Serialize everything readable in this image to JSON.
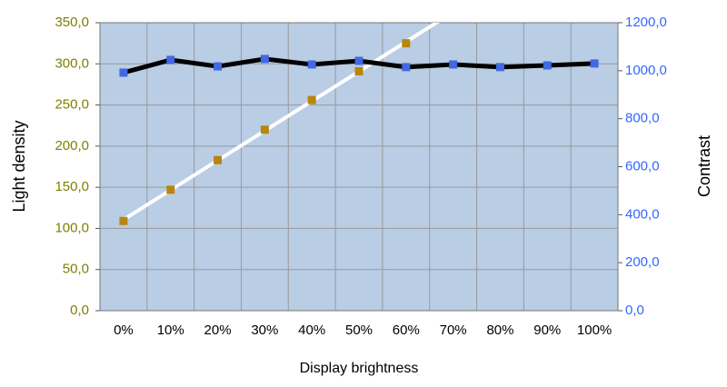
{
  "chart_data": {
    "type": "line",
    "categories": [
      "0%",
      "10%",
      "20%",
      "30%",
      "40%",
      "50%",
      "60%",
      "70%",
      "80%",
      "90%",
      "100%"
    ],
    "x_label": "Display brightness",
    "y_label": "Light density",
    "y2_label": "Contrast",
    "series": [
      {
        "name": "Light density",
        "color": "#b8860b",
        "line_color": "#ffffff",
        "trendline": true,
        "values": [
          109,
          147,
          183,
          220,
          256,
          291,
          325,
          null,
          null,
          null,
          null
        ]
      },
      {
        "name": "Contrast",
        "color": "#4169e1",
        "line_color": "#000000",
        "axis": "y2",
        "values": [
          992,
          1045,
          1018,
          1049,
          1026,
          1041,
          1015,
          1026,
          1015,
          1022,
          1030
        ]
      }
    ],
    "ylim": [
      0,
      350
    ],
    "yticks": [
      {
        "value": 0,
        "label": "0,0"
      },
      {
        "value": 50,
        "label": "50,0"
      },
      {
        "value": 100,
        "label": "100,0"
      },
      {
        "value": 150,
        "label": "150,0"
      },
      {
        "value": 200,
        "label": "200,0"
      },
      {
        "value": 250,
        "label": "250,0"
      },
      {
        "value": 300,
        "label": "300,0"
      },
      {
        "value": 350,
        "label": "350,0"
      }
    ],
    "y2lim": [
      0,
      1200
    ],
    "y2ticks": [
      {
        "value": 0,
        "label": "0,0"
      },
      {
        "value": 200,
        "label": "200,0"
      },
      {
        "value": 400,
        "label": "400,0"
      },
      {
        "value": 600,
        "label": "600,0"
      },
      {
        "value": 800,
        "label": "800,0"
      },
      {
        "value": 1000,
        "label": "1000,0"
      },
      {
        "value": 1200,
        "label": "1200,0"
      }
    ],
    "y_tick_color": "#7f7f00",
    "y2_tick_color": "#3366ff",
    "plot_background": "#b9cde5",
    "grid": true
  }
}
